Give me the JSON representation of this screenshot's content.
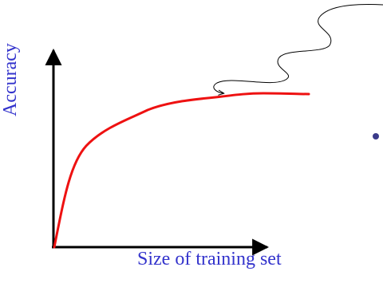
{
  "axes": {
    "x_label": "Size of training set",
    "y_label": "Accuracy"
  },
  "colors": {
    "curve": "#ee1111",
    "axes": "#000000",
    "label_text": "#3333cc",
    "pointer_line": "#000000",
    "bullet": "#3b3b8a"
  }
}
